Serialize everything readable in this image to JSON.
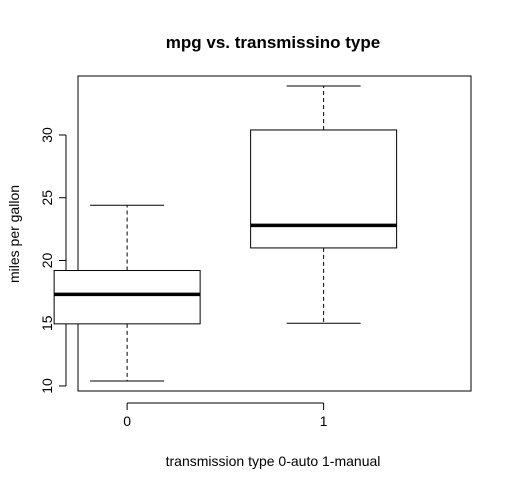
{
  "chart_data": {
    "type": "boxplot",
    "title": "mpg vs. transmissino type",
    "xlabel": "transmission type 0-auto 1-manual",
    "ylabel": "miles per gallon",
    "categories": [
      "0",
      "1"
    ],
    "boxes": [
      {
        "category": "0",
        "min": 10.4,
        "q1": 14.95,
        "median": 17.3,
        "q3": 19.2,
        "max": 24.4
      },
      {
        "category": "1",
        "min": 15.0,
        "q1": 21.0,
        "median": 22.8,
        "q3": 30.4,
        "max": 33.9
      }
    ],
    "ylim": [
      9.6,
      34.7
    ],
    "yticks": [
      10,
      15,
      20,
      25,
      30
    ],
    "grid": false,
    "colors": {
      "box_fill": "#ffffff",
      "stroke": "#000000"
    }
  }
}
